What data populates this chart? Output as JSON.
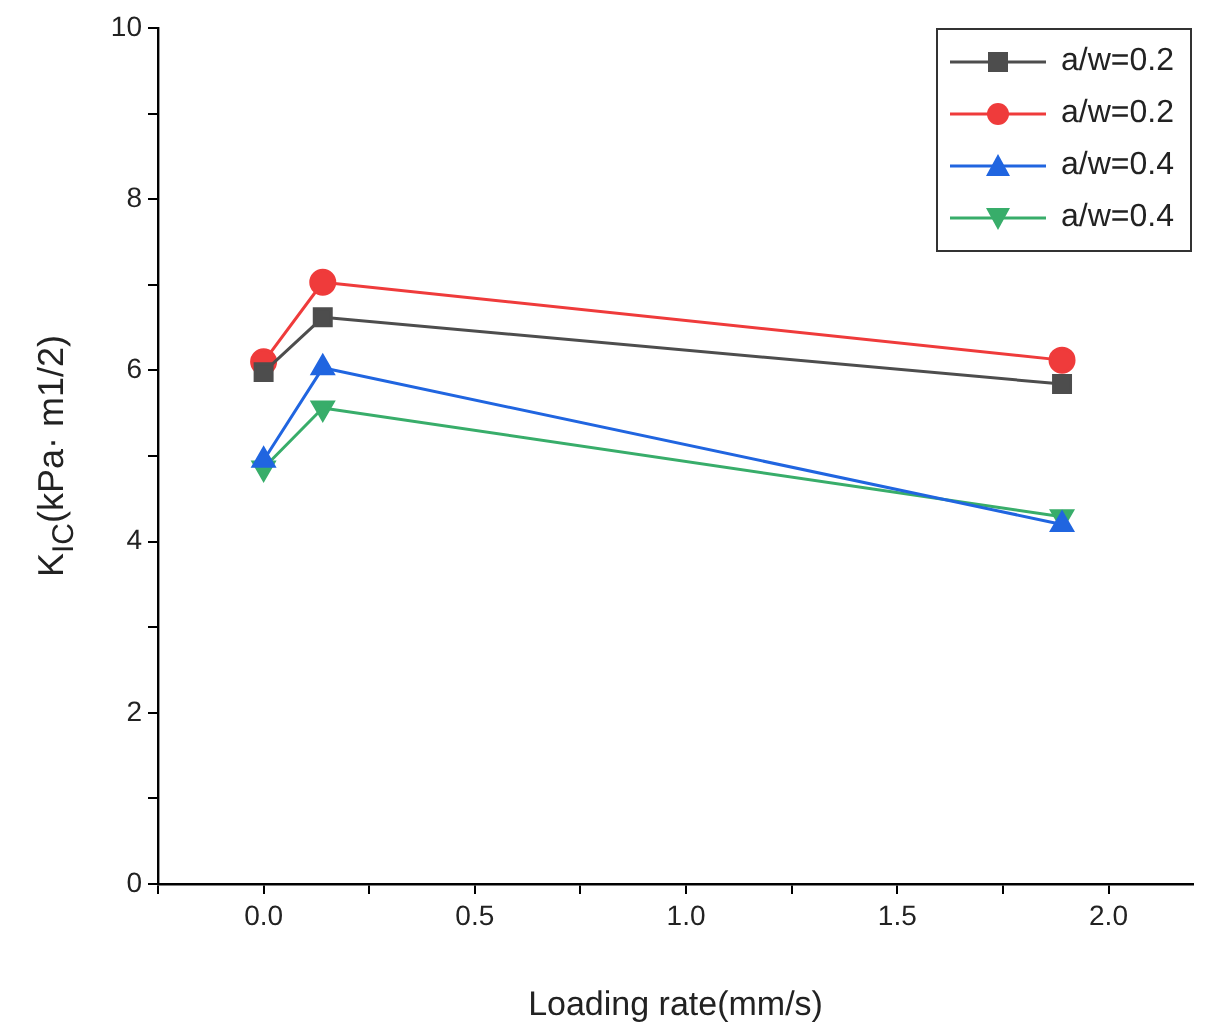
{
  "chart_data": {
    "type": "line",
    "xlabel": "Loading rate(mm/s)",
    "ylabel": "K$_{IC}$(kPa· m1/2)",
    "xlim": [
      -0.25,
      2.2
    ],
    "xticks": [
      {
        "value": -0.25,
        "label": null
      },
      {
        "value": 0,
        "label": "0.0"
      },
      {
        "value": 0.25,
        "label": null
      },
      0.5,
      {
        "value": 0.75,
        "label": null
      },
      {
        "value": 1,
        "label": "1.0"
      },
      {
        "value": 1.25,
        "label": null
      },
      1.5,
      {
        "value": 1.75,
        "label": null
      },
      {
        "value": 2,
        "label": "2.0"
      }
    ],
    "ylim": [
      0,
      10
    ],
    "yticks": [
      0,
      {
        "value": 1,
        "label": null
      },
      2,
      {
        "value": 3,
        "label": null
      },
      4,
      {
        "value": 5,
        "label": null
      },
      6,
      {
        "value": 7,
        "label": null
      },
      8,
      {
        "value": 9,
        "label": null
      },
      10
    ],
    "x": [
      0,
      0.14,
      1.89
    ],
    "series": [
      {
        "name": "a/w=0.2",
        "color": "#4d4d4d",
        "marker": "square",
        "values": [
          5.98,
          6.62,
          5.84
        ]
      },
      {
        "name": "a/w=0.2",
        "color": "#ef3b3b",
        "marker": "circle",
        "values": [
          6.1,
          7.03,
          6.12
        ]
      },
      {
        "name": "a/w=0.4",
        "color": "#2065e0",
        "marker": "triangle",
        "values": [
          4.95,
          6.03,
          4.2
        ]
      },
      {
        "name": "a/w=0.4",
        "color": "#38ad6a",
        "marker": "triangle-down",
        "values": [
          4.86,
          5.56,
          4.29
        ]
      }
    ],
    "grid": false,
    "legend": "top right",
    "line_style": "solid"
  }
}
